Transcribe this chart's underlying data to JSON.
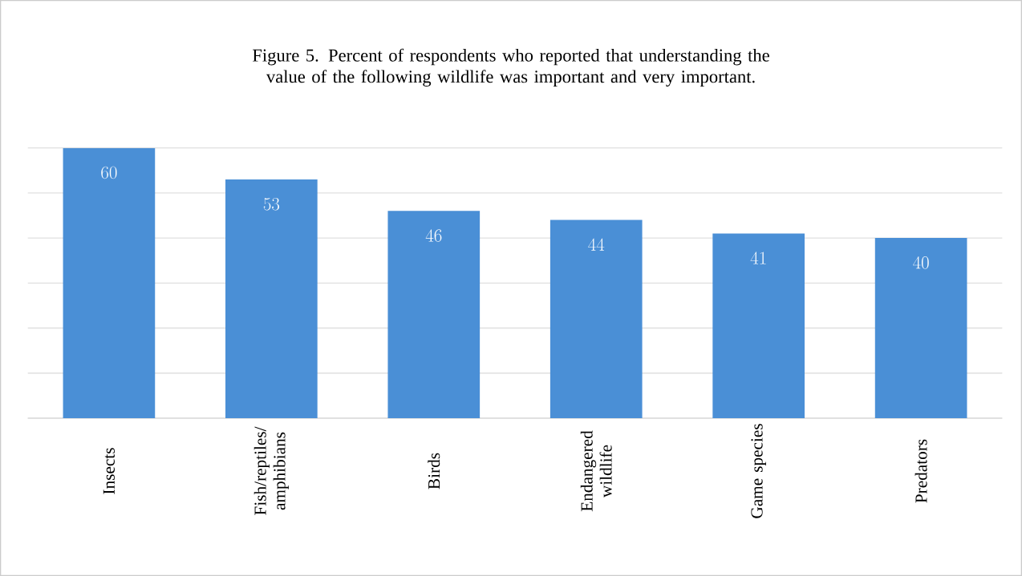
{
  "chart_data": {
    "type": "bar",
    "title": "Figure 5. Percent of respondents who reported that understanding the value of the following wildlife was important and very important.",
    "categories": [
      "Insects",
      "Fish/reptiles/ amphibians",
      "Birds",
      "Endangered wildlife",
      "Game species",
      "Predators"
    ],
    "values": [
      60,
      53,
      46,
      44,
      41,
      40
    ],
    "color": "#4a8fd6",
    "data_labels": true,
    "ylim": [
      0,
      60
    ],
    "tick_labels": "x",
    "grid": "y"
  }
}
